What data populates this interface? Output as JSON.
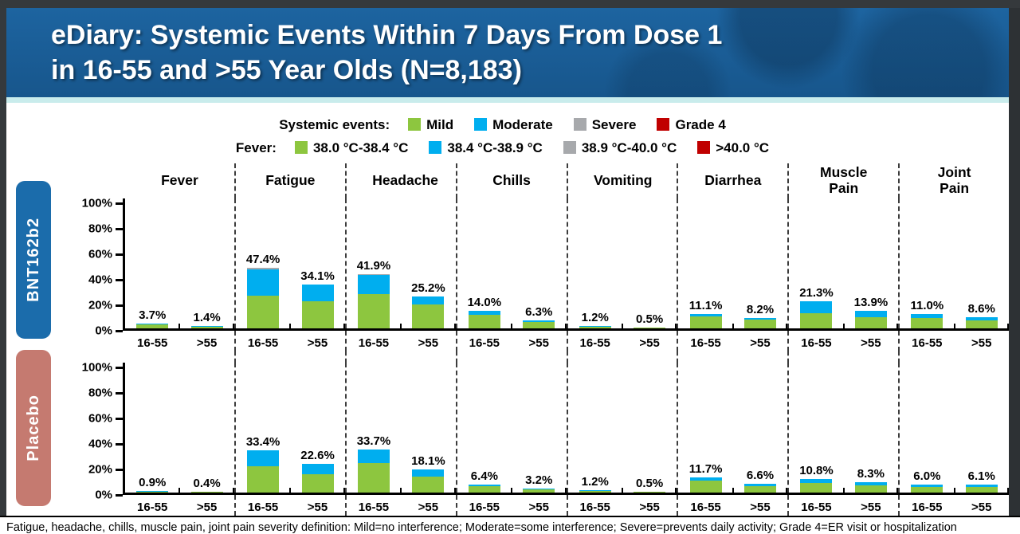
{
  "title": {
    "line1": "eDiary: Systemic Events Within 7 Days From Dose 1",
    "line2": "in 16-55 and >55 Year Olds (N=8,183)"
  },
  "legend": {
    "rows": [
      {
        "label": "Systemic events:",
        "items": [
          {
            "label": "Mild",
            "color": "#8DC63F"
          },
          {
            "label": "Moderate",
            "color": "#00AEEF"
          },
          {
            "label": "Severe",
            "color": "#A7A9AC"
          },
          {
            "label": "Grade 4",
            "color": "#C00000"
          }
        ]
      },
      {
        "label": "Fever:",
        "items": [
          {
            "label": "38.0 °C-38.4 °C",
            "color": "#8DC63F"
          },
          {
            "label": "38.4 °C-38.9 °C",
            "color": "#00AEEF"
          },
          {
            "label": "38.9 °C-40.0 °C",
            "color": "#A7A9AC"
          },
          {
            "label": ">40.0 °C",
            "color": "#C00000"
          }
        ]
      }
    ]
  },
  "chart_data": {
    "type": "bar",
    "stacked": true,
    "categories": [
      "Fever",
      "Fatigue",
      "Headache",
      "Chills",
      "Vomiting",
      "Diarrhea",
      "Muscle Pain",
      "Joint Pain"
    ],
    "group_labels": [
      "16-55",
      ">55"
    ],
    "severity_colors": {
      "mild": "#8DC63F",
      "moderate": "#00AEEF",
      "severe": "#A7A9AC",
      "grade4": "#C00000"
    },
    "ylim": [
      0,
      100
    ],
    "yticks": [
      "100%",
      "80%",
      "60%",
      "40%",
      "20%",
      "0%"
    ],
    "legend_position": "top",
    "series": [
      {
        "name": "BNT162b2",
        "pill_color": "#1b6cab",
        "data": [
          {
            "category": "Fever",
            "groups": [
              {
                "label": "16-55",
                "total": "3.7%",
                "mild": 3.0,
                "moderate": 0.7,
                "severe": 0
              },
              {
                "label": ">55",
                "total": "1.4%",
                "mild": 1.3,
                "moderate": 0.1,
                "severe": 0
              }
            ]
          },
          {
            "category": "Fatigue",
            "groups": [
              {
                "label": "16-55",
                "total": "47.4%",
                "mild": 25.9,
                "moderate": 20.5,
                "severe": 1.0
              },
              {
                "label": ">55",
                "total": "34.1%",
                "mild": 21.0,
                "moderate": 13.1,
                "severe": 0
              }
            ]
          },
          {
            "category": "Headache",
            "groups": [
              {
                "label": "16-55",
                "total": "41.9%",
                "mild": 27.0,
                "moderate": 14.6,
                "severe": 0.3
              },
              {
                "label": ">55",
                "total": "25.2%",
                "mild": 19.0,
                "moderate": 6.2,
                "severe": 0
              }
            ]
          },
          {
            "category": "Chills",
            "groups": [
              {
                "label": "16-55",
                "total": "14.0%",
                "mild": 10.6,
                "moderate": 3.4,
                "severe": 0
              },
              {
                "label": ">55",
                "total": "6.3%",
                "mild": 5.0,
                "moderate": 1.3,
                "severe": 0
              }
            ]
          },
          {
            "category": "Vomiting",
            "groups": [
              {
                "label": "16-55",
                "total": "1.2%",
                "mild": 1.0,
                "moderate": 0.2,
                "severe": 0
              },
              {
                "label": ">55",
                "total": "0.5%",
                "mild": 0.5,
                "moderate": 0,
                "severe": 0
              }
            ]
          },
          {
            "category": "Diarrhea",
            "groups": [
              {
                "label": "16-55",
                "total": "11.1%",
                "mild": 9.1,
                "moderate": 2.0,
                "severe": 0
              },
              {
                "label": ">55",
                "total": "8.2%",
                "mild": 6.8,
                "moderate": 1.4,
                "severe": 0
              }
            ]
          },
          {
            "category": "Muscle Pain",
            "groups": [
              {
                "label": "16-55",
                "total": "21.3%",
                "mild": 12.0,
                "moderate": 9.3,
                "severe": 0
              },
              {
                "label": ">55",
                "total": "13.9%",
                "mild": 9.0,
                "moderate": 4.9,
                "severe": 0
              }
            ]
          },
          {
            "category": "Joint Pain",
            "groups": [
              {
                "label": "16-55",
                "total": "11.0%",
                "mild": 7.9,
                "moderate": 3.1,
                "severe": 0
              },
              {
                "label": ">55",
                "total": "8.6%",
                "mild": 6.2,
                "moderate": 2.4,
                "severe": 0
              }
            ]
          }
        ]
      },
      {
        "name": "Placebo",
        "pill_color": "#c57a70",
        "data": [
          {
            "category": "Fever",
            "groups": [
              {
                "label": "16-55",
                "total": "0.9%",
                "mild": 0.8,
                "moderate": 0.1,
                "severe": 0
              },
              {
                "label": ">55",
                "total": "0.4%",
                "mild": 0.4,
                "moderate": 0,
                "severe": 0
              }
            ]
          },
          {
            "category": "Fatigue",
            "groups": [
              {
                "label": "16-55",
                "total": "33.4%",
                "mild": 20.9,
                "moderate": 12.5,
                "severe": 0
              },
              {
                "label": ">55",
                "total": "22.6%",
                "mild": 14.6,
                "moderate": 8.0,
                "severe": 0
              }
            ]
          },
          {
            "category": "Headache",
            "groups": [
              {
                "label": "16-55",
                "total": "33.7%",
                "mild": 22.9,
                "moderate": 10.8,
                "severe": 0
              },
              {
                "label": ">55",
                "total": "18.1%",
                "mild": 12.6,
                "moderate": 5.5,
                "severe": 0
              }
            ]
          },
          {
            "category": "Chills",
            "groups": [
              {
                "label": "16-55",
                "total": "6.4%",
                "mild": 5.0,
                "moderate": 1.4,
                "severe": 0
              },
              {
                "label": ">55",
                "total": "3.2%",
                "mild": 2.6,
                "moderate": 0.6,
                "severe": 0
              }
            ]
          },
          {
            "category": "Vomiting",
            "groups": [
              {
                "label": "16-55",
                "total": "1.2%",
                "mild": 1.0,
                "moderate": 0.2,
                "severe": 0
              },
              {
                "label": ">55",
                "total": "0.5%",
                "mild": 0.5,
                "moderate": 0,
                "severe": 0
              }
            ]
          },
          {
            "category": "Diarrhea",
            "groups": [
              {
                "label": "16-55",
                "total": "11.7%",
                "mild": 9.5,
                "moderate": 2.2,
                "severe": 0
              },
              {
                "label": ">55",
                "total": "6.6%",
                "mild": 5.3,
                "moderate": 1.3,
                "severe": 0
              }
            ]
          },
          {
            "category": "Muscle Pain",
            "groups": [
              {
                "label": "16-55",
                "total": "10.8%",
                "mild": 7.6,
                "moderate": 3.2,
                "severe": 0
              },
              {
                "label": ">55",
                "total": "8.3%",
                "mild": 5.9,
                "moderate": 2.4,
                "severe": 0
              }
            ]
          },
          {
            "category": "Joint Pain",
            "groups": [
              {
                "label": "16-55",
                "total": "6.0%",
                "mild": 4.3,
                "moderate": 1.7,
                "severe": 0
              },
              {
                "label": ">55",
                "total": "6.1%",
                "mild": 4.4,
                "moderate": 1.7,
                "severe": 0
              }
            ]
          }
        ]
      }
    ]
  },
  "footer": "Fatigue, headache, chills, muscle pain, joint pain severity definition: Mild=no interference; Moderate=some interference; Severe=prevents daily activity; Grade 4=ER visit or hospitalization"
}
